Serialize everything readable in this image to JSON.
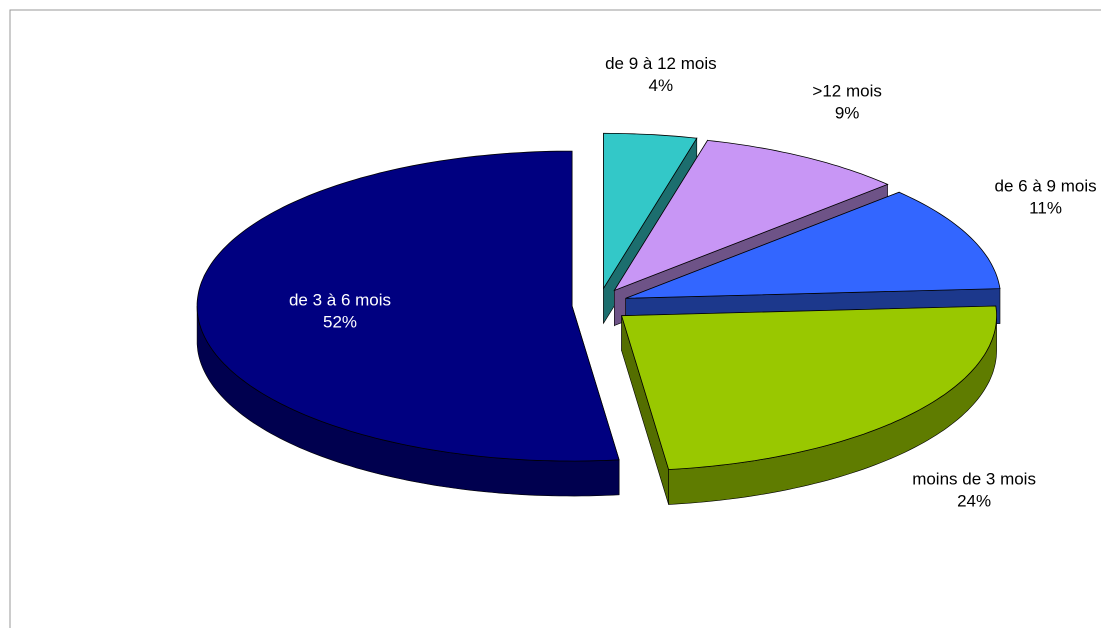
{
  "chart_data": {
    "type": "pie",
    "categories": [
      "de 9 à 12 mois",
      ">12 mois",
      "de 6 à 9 mois",
      "moins de 3 mois",
      "de 3 à 6 mois"
    ],
    "values": [
      4,
      9,
      11,
      24,
      52
    ],
    "value_labels": [
      "4%",
      "9%",
      "11%",
      "24%",
      "52%"
    ],
    "colors": [
      "#33c8c8",
      "#c896f5",
      "#3366ff",
      "#99c800",
      "#000080"
    ]
  }
}
